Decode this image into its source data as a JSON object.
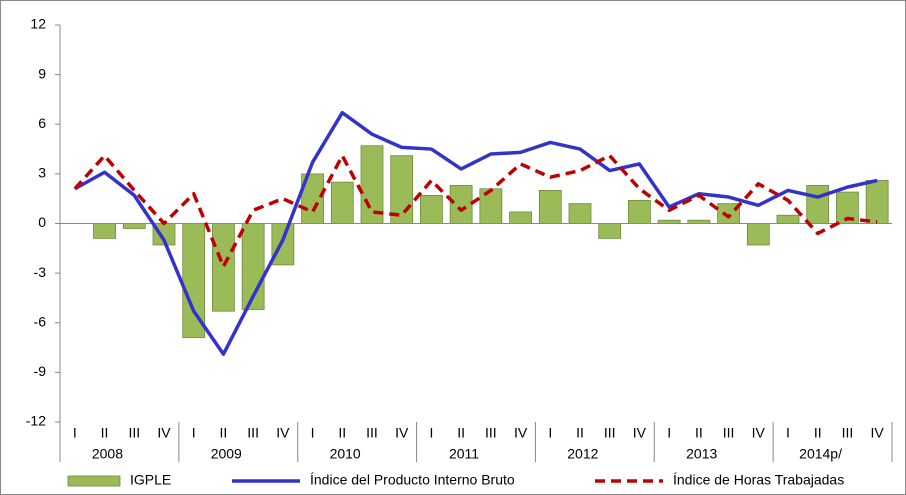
{
  "chart_data": {
    "type": "combo",
    "categories": [
      "I",
      "II",
      "III",
      "IV",
      "I",
      "II",
      "III",
      "IV",
      "I",
      "II",
      "III",
      "IV",
      "I",
      "II",
      "III",
      "IV",
      "I",
      "II",
      "III",
      "IV",
      "I",
      "II",
      "III",
      "IV",
      "I",
      "II",
      "III",
      "IV"
    ],
    "years": [
      "2008",
      "2009",
      "2010",
      "2011",
      "2012",
      "2013",
      "2014p/"
    ],
    "series": [
      {
        "name": "IGPLE",
        "type": "bar",
        "color": "#9bbb59",
        "values": [
          null,
          -0.9,
          -0.3,
          -1.3,
          -6.9,
          -5.3,
          -5.2,
          -2.5,
          3.0,
          2.5,
          4.7,
          4.1,
          1.7,
          2.3,
          2.1,
          0.7,
          2.0,
          1.2,
          -0.9,
          1.4,
          0.2,
          0.2,
          1.2,
          -1.3,
          0.5,
          2.3,
          1.9,
          2.6
        ]
      },
      {
        "name": "Índice del Producto Interno Bruto",
        "type": "line",
        "color": "#3333cc",
        "values": [
          2.1,
          3.1,
          1.7,
          -1.0,
          -5.3,
          -7.9,
          -4.4,
          -1.0,
          3.7,
          6.7,
          5.4,
          4.6,
          4.5,
          3.3,
          4.2,
          4.3,
          4.9,
          4.5,
          3.2,
          3.6,
          1.0,
          1.8,
          1.6,
          1.1,
          2.0,
          1.6,
          2.2,
          2.6
        ]
      },
      {
        "name": "Índice de Horas Trabajadas",
        "type": "dashed-line",
        "color": "#c00000",
        "values": [
          2.1,
          4.1,
          2.0,
          0.0,
          1.8,
          -2.6,
          0.8,
          1.5,
          0.7,
          4.1,
          0.7,
          0.5,
          2.6,
          0.8,
          2.0,
          3.6,
          2.8,
          3.2,
          4.1,
          2.1,
          0.8,
          1.7,
          0.4,
          2.4,
          1.4,
          -0.6,
          0.3,
          0.1
        ]
      }
    ],
    "ylim": [
      -12,
      12
    ],
    "yticks": [
      -12,
      -9,
      -6,
      -3,
      0,
      3,
      6,
      9,
      12
    ],
    "grid": false
  }
}
